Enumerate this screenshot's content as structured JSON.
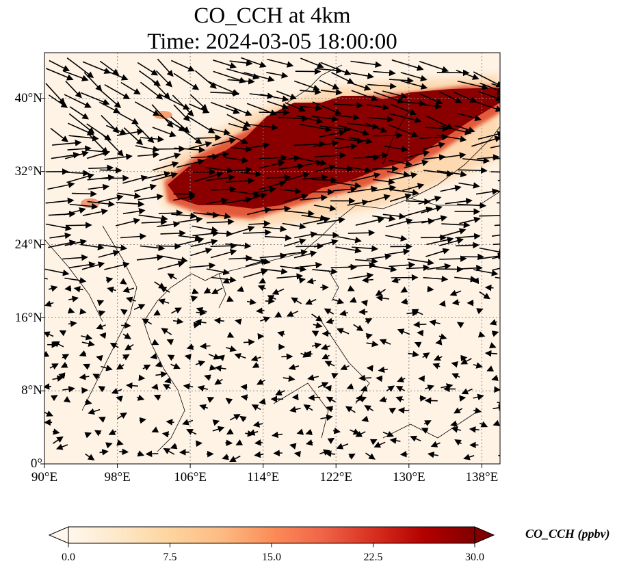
{
  "title": {
    "line1": "CO_CCH at 4km",
    "line2": "Time: 2024-03-05 18:00:00"
  },
  "map": {
    "projection": "PlateCarree",
    "lon_range": [
      90,
      140
    ],
    "lat_range": [
      0,
      45
    ],
    "gridlines": true,
    "coastlines": true,
    "borders": true,
    "field": "CO_CCH",
    "vectors": "wind arrows, predominantly westerly in north, weak and variable in south"
  },
  "x_ticks": [
    "90°E",
    "98°E",
    "106°E",
    "114°E",
    "122°E",
    "130°E",
    "138°E"
  ],
  "y_ticks": [
    "0°",
    "8°N",
    "16°N",
    "24°N",
    "32°N",
    "40°N"
  ],
  "colorbar": {
    "label": "CO_CCH (ppbv)",
    "ticks": [
      "0.0",
      "7.5",
      "15.0",
      "22.5",
      "30.0"
    ],
    "min": 0,
    "max": 30,
    "extend": "both",
    "colormap": "OrRd",
    "colors": [
      "#fff7ec",
      "#fee8c8",
      "#fdd49e",
      "#fdbb84",
      "#fc8d59",
      "#ef6548",
      "#d7301f",
      "#b30000",
      "#7f0000"
    ]
  },
  "plume": {
    "description": "High CO concentration band from central China eastward across Yellow Sea, Korea and Japan",
    "max_value": 30
  }
}
